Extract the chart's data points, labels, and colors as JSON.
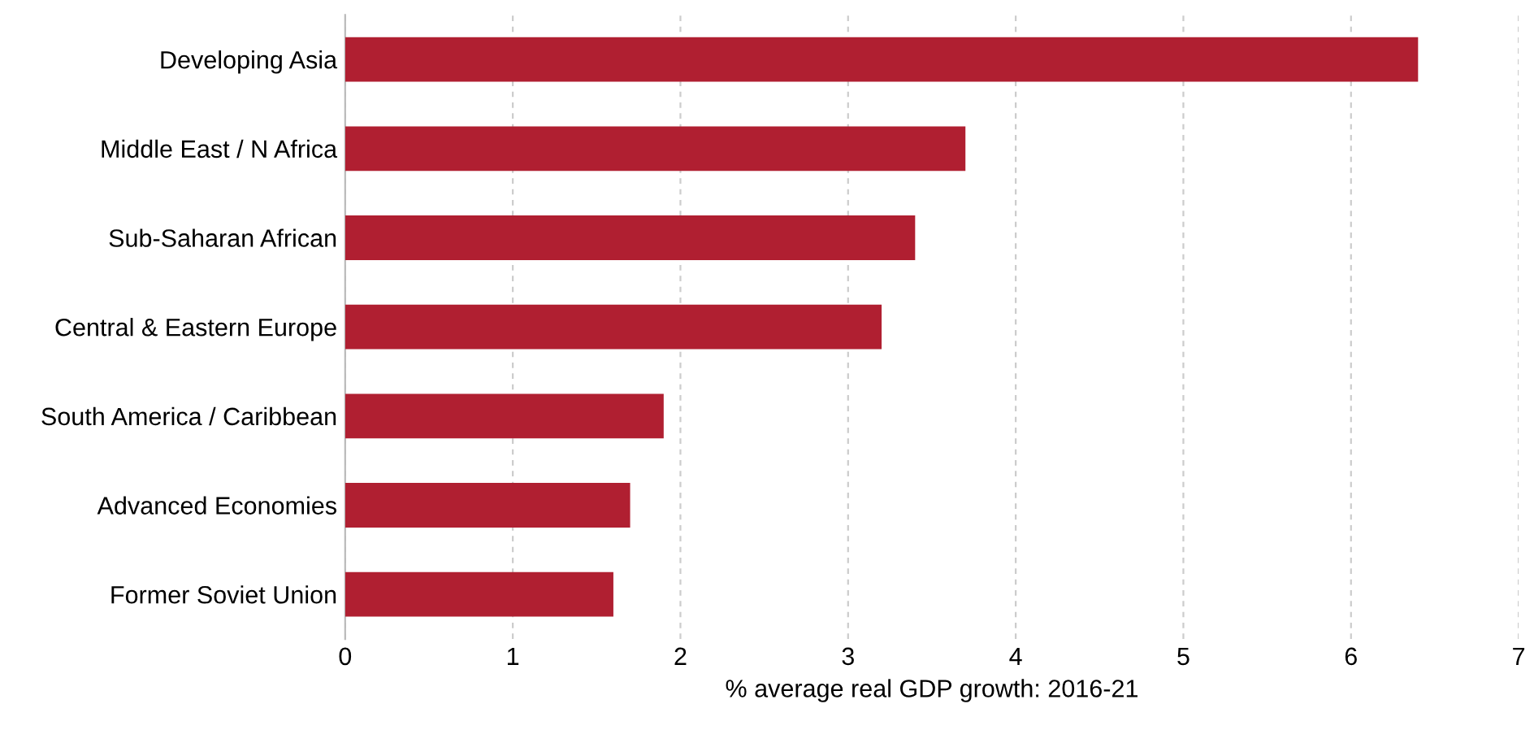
{
  "chart_data": {
    "type": "bar",
    "orientation": "horizontal",
    "xlabel": "% average real GDP growth: 2016-21",
    "categories": [
      "Developing Asia",
      "Middle East / N Africa",
      "Sub-Saharan African",
      "Central & Eastern Europe",
      "South America / Caribbean",
      "Advanced Economies",
      "Former Soviet Union"
    ],
    "values": [
      6.4,
      3.7,
      3.4,
      3.2,
      1.9,
      1.7,
      1.6
    ],
    "color": "#b01f31",
    "xlim": [
      0,
      7
    ],
    "xticks": [
      0,
      1,
      2,
      3,
      4,
      5,
      6,
      7
    ],
    "grid": "x"
  }
}
